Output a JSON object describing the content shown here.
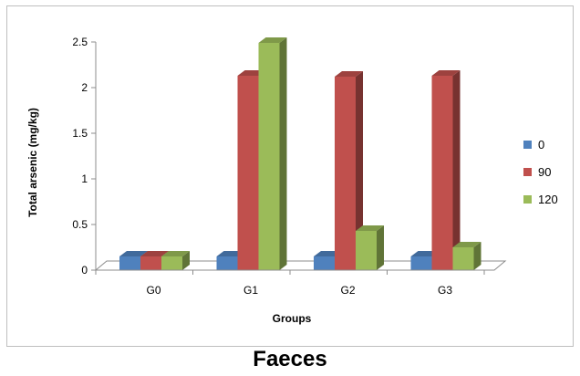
{
  "caption": "Faeces",
  "chart_data": {
    "type": "bar",
    "style": "3d-clustered-column",
    "categories": [
      "G0",
      "G1",
      "G2",
      "G3"
    ],
    "series": [
      {
        "name": "0",
        "values": [
          0.15,
          0.15,
          0.15,
          0.15
        ],
        "color": "#4F81BD"
      },
      {
        "name": "90",
        "values": [
          0.15,
          2.13,
          2.12,
          2.13
        ],
        "color": "#C0504D"
      },
      {
        "name": "120",
        "values": [
          0.15,
          2.49,
          0.43,
          0.25
        ],
        "color": "#9BBB59"
      }
    ],
    "xlabel": "Groups",
    "ylabel": "Total arsenic (mg/kg)",
    "ylim": [
      0,
      2.5
    ],
    "yticks": [
      "0",
      "0.5",
      "1",
      "1.5",
      "2",
      "2.5"
    ],
    "grid": false,
    "legend": "right"
  }
}
